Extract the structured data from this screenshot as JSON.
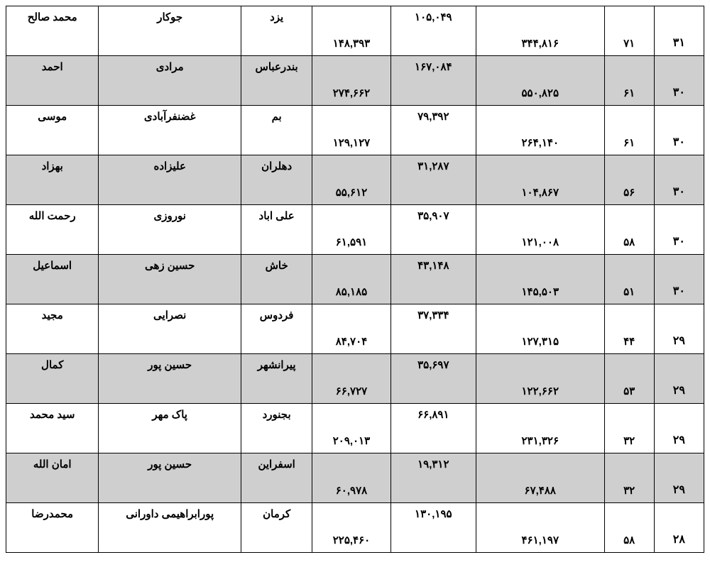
{
  "table": {
    "row_background_plain": "#ffffff",
    "row_background_shaded": "#d0cfcf",
    "border_color": "#000000",
    "rows": [
      {
        "shaded": false,
        "first_name": "محمد صالح",
        "last_name": "جوکار",
        "city": "یزد",
        "n1": "۱۴۸,۳۹۳",
        "n2": "۱۰۵,۰۴۹",
        "n3": "۳۴۴,۸۱۶",
        "n4": "۷۱",
        "n5": "۳۱"
      },
      {
        "shaded": true,
        "first_name": "احمد",
        "last_name": "مرادی",
        "city": "بندرعباس",
        "n1": "۲۷۴,۶۶۲",
        "n2": "۱۶۷,۰۸۴",
        "n3": "۵۵۰,۸۲۵",
        "n4": "۶۱",
        "n5": "۳۰"
      },
      {
        "shaded": false,
        "first_name": "موسی",
        "last_name": "غضنفرآبادی",
        "city": "بم",
        "n1": "۱۲۹,۱۲۷",
        "n2": "۷۹,۳۹۲",
        "n3": "۲۶۴,۱۴۰",
        "n4": "۶۱",
        "n5": "۳۰"
      },
      {
        "shaded": true,
        "first_name": "بهزاد",
        "last_name": "علیزاده",
        "city": "دهلران",
        "n1": "۵۵,۶۱۲",
        "n2": "۳۱,۲۸۷",
        "n3": "۱۰۴,۸۶۷",
        "n4": "۵۶",
        "n5": "۳۰"
      },
      {
        "shaded": false,
        "first_name": "رحمت الله",
        "last_name": "نوروزی",
        "city": "علی اباد",
        "n1": "۶۱,۵۹۱",
        "n2": "۳۵,۹۰۷",
        "n3": "۱۲۱,۰۰۸",
        "n4": "۵۸",
        "n5": "۳۰"
      },
      {
        "shaded": true,
        "first_name": "اسماعیل",
        "last_name": "حسین زهی",
        "city": "خاش",
        "n1": "۸۵,۱۸۵",
        "n2": "۴۳,۱۴۸",
        "n3": "۱۴۵,۵۰۳",
        "n4": "۵۱",
        "n5": "۳۰"
      },
      {
        "shaded": false,
        "first_name": "مجید",
        "last_name": "نصرایی",
        "city": "فردوس",
        "n1": "۸۴,۷۰۴",
        "n2": "۳۷,۳۳۴",
        "n3": "۱۲۷,۳۱۵",
        "n4": "۴۴",
        "n5": "۲۹"
      },
      {
        "shaded": true,
        "first_name": "کمال",
        "last_name": "حسین پور",
        "city": "پیرانشهر",
        "n1": "۶۶,۷۲۷",
        "n2": "۳۵,۶۹۷",
        "n3": "۱۲۲,۶۶۲",
        "n4": "۵۳",
        "n5": "۲۹"
      },
      {
        "shaded": false,
        "first_name": "سید محمد",
        "last_name": "پاک مهر",
        "city": "بجنورد",
        "n1": "۲۰۹,۰۱۳",
        "n2": "۶۶,۸۹۱",
        "n3": "۲۳۱,۳۲۶",
        "n4": "۳۲",
        "n5": "۲۹"
      },
      {
        "shaded": true,
        "first_name": "امان الله",
        "last_name": "حسین پور",
        "city": "اسفراین",
        "n1": "۶۰,۹۷۸",
        "n2": "۱۹,۳۱۲",
        "n3": "۶۷,۴۸۸",
        "n4": "۳۲",
        "n5": "۲۹"
      },
      {
        "shaded": false,
        "first_name": "محمدرضا",
        "last_name": "پورابراهیمی داورانی",
        "city": "کرمان",
        "n1": "۲۲۵,۴۶۰",
        "n2": "۱۳۰,۱۹۵",
        "n3": "۴۶۱,۱۹۷",
        "n4": "۵۸",
        "n5": "۲۸"
      }
    ]
  }
}
